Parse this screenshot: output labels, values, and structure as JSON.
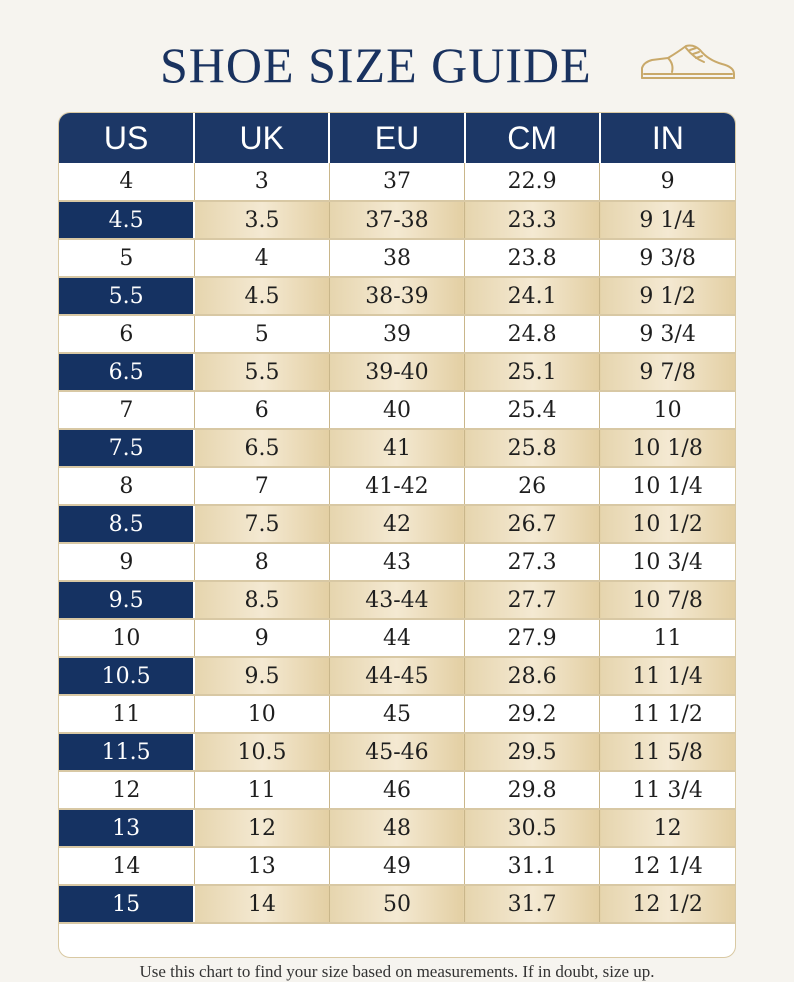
{
  "header": {
    "title": "SHOE SIZE GUIDE",
    "icon": "dress-shoe-icon"
  },
  "table": {
    "columns": [
      "US",
      "UK",
      "EU",
      "CM",
      "IN"
    ],
    "rows": [
      [
        "4",
        "3",
        "37",
        "22.9",
        "9"
      ],
      [
        "4.5",
        "3.5",
        "37-38",
        "23.3",
        "9 1/4"
      ],
      [
        "5",
        "4",
        "38",
        "23.8",
        "9 3/8"
      ],
      [
        "5.5",
        "4.5",
        "38-39",
        "24.1",
        "9 1/2"
      ],
      [
        "6",
        "5",
        "39",
        "24.8",
        "9 3/4"
      ],
      [
        "6.5",
        "5.5",
        "39-40",
        "25.1",
        "9 7/8"
      ],
      [
        "7",
        "6",
        "40",
        "25.4",
        "10"
      ],
      [
        "7.5",
        "6.5",
        "41",
        "25.8",
        "10 1/8"
      ],
      [
        "8",
        "7",
        "41-42",
        "26",
        "10 1/4"
      ],
      [
        "8.5",
        "7.5",
        "42",
        "26.7",
        "10 1/2"
      ],
      [
        "9",
        "8",
        "43",
        "27.3",
        "10 3/4"
      ],
      [
        "9.5",
        "8.5",
        "43-44",
        "27.7",
        "10 7/8"
      ],
      [
        "10",
        "9",
        "44",
        "27.9",
        "11"
      ],
      [
        "10.5",
        "9.5",
        "44-45",
        "28.6",
        "11 1/4"
      ],
      [
        "11",
        "10",
        "45",
        "29.2",
        "11 1/2"
      ],
      [
        "11.5",
        "10.5",
        "45-46",
        "29.5",
        "11 5/8"
      ],
      [
        "12",
        "11",
        "46",
        "29.8",
        "11 3/4"
      ],
      [
        "13",
        "12",
        "48",
        "30.5",
        "12"
      ],
      [
        "14",
        "13",
        "49",
        "31.1",
        "12 1/4"
      ],
      [
        "15",
        "14",
        "50",
        "31.7",
        "12 1/2"
      ]
    ]
  },
  "footer": {
    "note": "Use this chart to find your size based on measurements. If in doubt, size up."
  },
  "colors": {
    "navy": "#1c3766",
    "gold": "#e6d5ae",
    "background": "#f6f4ef"
  }
}
